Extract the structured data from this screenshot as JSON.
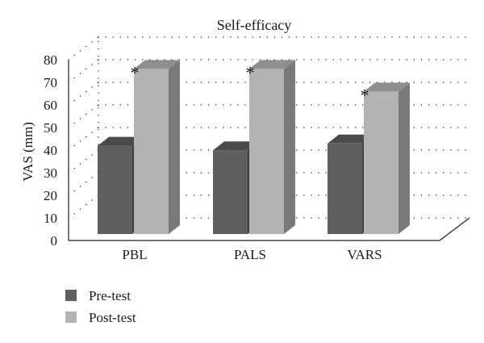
{
  "chart_data": {
    "type": "bar",
    "title": "Self-efficacy",
    "ylabel": "VAS (mm)",
    "xlabel": "",
    "ylim": [
      0,
      80
    ],
    "yticks": [
      0,
      10,
      20,
      30,
      40,
      50,
      60,
      70,
      80
    ],
    "grid": true,
    "categories": [
      "PBL",
      "PALS",
      "VARS"
    ],
    "series": [
      {
        "name": "Pre-test",
        "values": [
          38,
          36,
          39
        ],
        "color": "#5f5f5f",
        "side": "#3f3f3f",
        "top": "#4a4a4a"
      },
      {
        "name": "Post-test",
        "values": [
          72,
          72,
          62
        ],
        "color": "#b3b3b3",
        "side": "#7a7a7a",
        "top": "#8f8f8f"
      }
    ],
    "annotations": [
      {
        "category": "PBL",
        "series": "Post-test",
        "text": "*"
      },
      {
        "category": "PALS",
        "series": "Post-test",
        "text": "*"
      },
      {
        "category": "VARS",
        "series": "Post-test",
        "text": "*"
      }
    ],
    "legend_position": "bottom-left"
  }
}
